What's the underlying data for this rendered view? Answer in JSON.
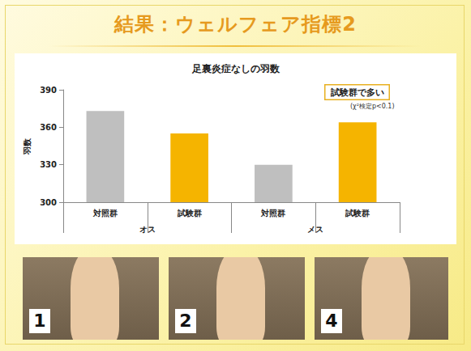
{
  "page": {
    "title": "結果：ウェルフェア指標2",
    "photo_labels": [
      "1",
      "2",
      "4"
    ]
  },
  "chart_data": {
    "type": "bar",
    "title": "足裏炎症なしの羽数",
    "y_label": "羽数",
    "categories": [
      "対照群",
      "試験群",
      "対照群",
      "試験群"
    ],
    "groups": [
      "オス",
      "メス"
    ],
    "values": [
      373,
      355,
      330,
      364
    ],
    "colors": [
      "#bfbfbf",
      "#f5b400",
      "#bfbfbf",
      "#f5b400"
    ],
    "ylim": [
      300,
      390
    ],
    "yticks": [
      300,
      330,
      360,
      390
    ],
    "grid": false,
    "annotations": [
      "試験群で多い",
      "(χ²検定p<0.1)"
    ]
  }
}
